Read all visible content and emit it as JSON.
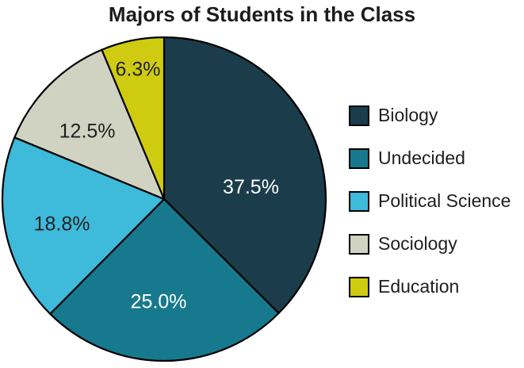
{
  "title": "Majors of Students in the Class",
  "chart_data": {
    "type": "pie",
    "title": "Majors of Students in the Class",
    "direction": "clockwise",
    "start_angle": "12-o-clock",
    "legend_position": "right",
    "background_color": "#ffffff",
    "stroke": {
      "color": "#000000",
      "width": 2.2
    },
    "slices": [
      {
        "label": "Biology",
        "value": 37.5,
        "pct_label": "37.5%",
        "color": "#1b3c4b",
        "label_color": "#ffffff",
        "label_offset": [
          0.537,
          -0.073
        ]
      },
      {
        "label": "Undecided",
        "value": 25.0,
        "pct_label": "25.0%",
        "color": "#17798e",
        "label_color": "#ffffff",
        "label_offset": [
          -0.034,
          0.635
        ]
      },
      {
        "label": "Political Science",
        "value": 18.8,
        "pct_label": "18.8%",
        "color": "#3ebadb",
        "label_color": "#1f1f1f",
        "label_offset": [
          -0.632,
          0.154
        ]
      },
      {
        "label": "Sociology",
        "value": 12.5,
        "pct_label": "12.5%",
        "color": "#d0d3c1",
        "label_color": "#1f1f1f",
        "label_offset": [
          -0.475,
          -0.419
        ]
      },
      {
        "label": "Education",
        "value": 6.3,
        "pct_label": "6.3%",
        "color": "#cfcb11",
        "label_color": "#1f1f1f",
        "label_offset": [
          -0.162,
          -0.801
        ]
      }
    ]
  }
}
